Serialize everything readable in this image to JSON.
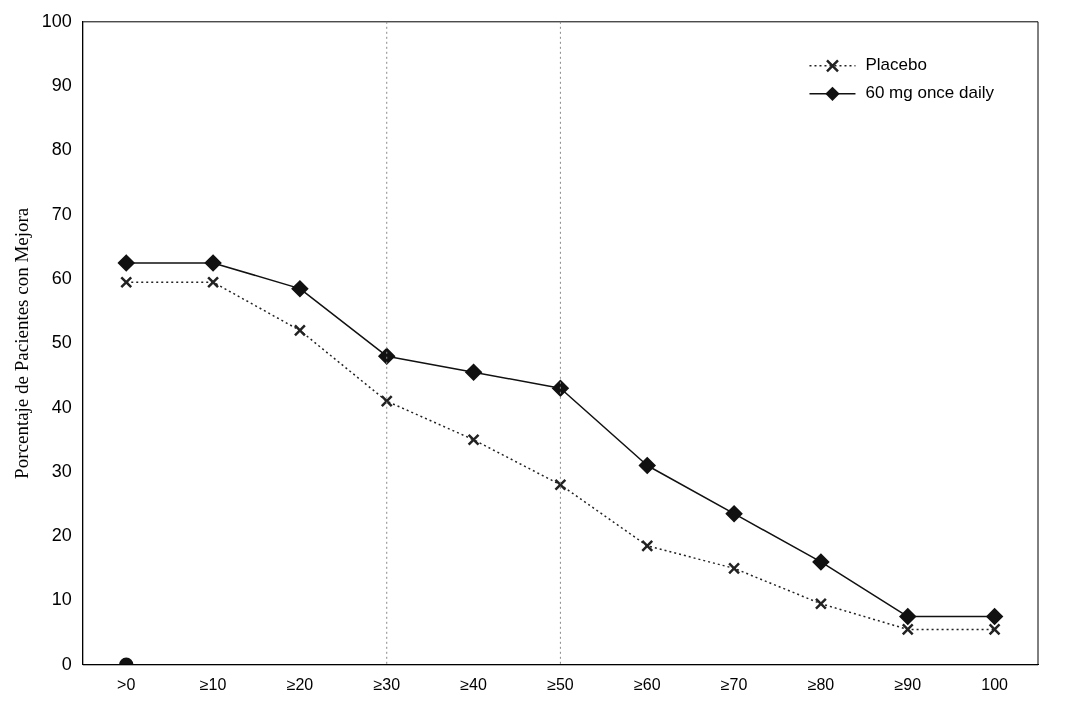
{
  "chart_data": {
    "type": "line",
    "ylabel": "Porcentaje de Pacientes con Mejora",
    "categories": [
      ">0",
      "≥10",
      "≥20",
      "≥30",
      "≥40",
      "≥50",
      "≥60",
      "≥70",
      "≥80",
      "≥90",
      "100"
    ],
    "series": [
      {
        "name": "Placebo",
        "color": "#222222",
        "values": [
          59.5,
          59.5,
          52,
          41,
          35,
          28,
          18.5,
          15,
          9.5,
          5.5,
          5.5
        ],
        "line_style": "dotted",
        "marker": "cross"
      },
      {
        "name": "60 mg once daily",
        "color": "#111111",
        "values": [
          62.5,
          62.5,
          58.5,
          48,
          45.5,
          43,
          31,
          23.5,
          16,
          7.5,
          7.5
        ],
        "line_style": "solid",
        "marker": "diamond"
      },
      {
        "type": "scatter",
        "color": "#111111",
        "values": [
          0,
          null,
          null,
          null,
          null,
          null,
          null,
          null,
          null,
          null,
          null
        ],
        "marker": "circle"
      }
    ],
    "ylim": [
      0,
      100
    ],
    "yticks": [
      0,
      10,
      20,
      30,
      40,
      50,
      60,
      70,
      80,
      90,
      100
    ],
    "grid": false,
    "legend": "top right",
    "ref_lines": [
      {
        "axis": "x",
        "value": "≥30",
        "line_style": "dotted",
        "color": "#888888"
      },
      {
        "axis": "x",
        "value": "≥50",
        "line_style": "dotted",
        "color": "#888888"
      }
    ]
  }
}
